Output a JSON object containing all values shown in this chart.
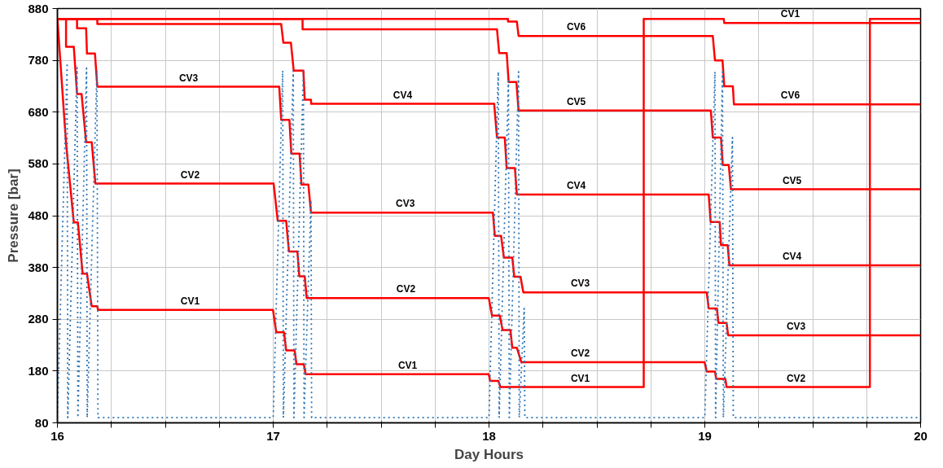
{
  "chart_data": {
    "type": "line",
    "xlabel": "Day Hours",
    "ylabel": "Pressure [bar]",
    "xlim": [
      16,
      20
    ],
    "ylim": [
      80,
      880
    ],
    "xticks": [
      16,
      {
        "value": 16.25,
        "label": null
      },
      {
        "value": 16.5,
        "label": null
      },
      {
        "value": 16.75,
        "label": null
      },
      17,
      {
        "value": 17.25,
        "label": null
      },
      {
        "value": 17.5,
        "label": null
      },
      {
        "value": 17.75,
        "label": null
      },
      18,
      {
        "value": 18.25,
        "label": null
      },
      {
        "value": 18.5,
        "label": null
      },
      {
        "value": 18.75,
        "label": null
      },
      19,
      {
        "value": 19.25,
        "label": null
      },
      {
        "value": 19.5,
        "label": null
      },
      {
        "value": 19.75,
        "label": null
      },
      20
    ],
    "yticks": [
      80,
      180,
      280,
      380,
      480,
      580,
      680,
      780,
      880
    ],
    "grid": true,
    "marker": "none",
    "series": [
      {
        "color": "#ff0000",
        "line_style": "solid",
        "x": [
          16.0,
          16.04,
          16.076,
          16.095,
          16.117,
          16.137,
          16.159,
          16.185,
          16.188,
          16.999,
          17.014,
          17.05,
          17.06,
          17.099,
          17.108,
          17.142,
          17.15,
          17.999,
          18.005,
          18.043,
          18.053,
          18.717,
          18.717,
          19.088,
          19.09,
          20
        ],
        "values": [
          860,
          620,
          467,
          467,
          368,
          368,
          305,
          305,
          298,
          298,
          255,
          255,
          220,
          220,
          193,
          193,
          174,
          174,
          161,
          161,
          149,
          149,
          860,
          860,
          852,
          852
        ]
      },
      {
        "color": "#ff0000",
        "line_style": "solid",
        "x": [
          16.0,
          16.04,
          16.04,
          16.076,
          16.091,
          16.112,
          16.133,
          16.159,
          16.176,
          17.002,
          17.021,
          17.06,
          17.073,
          17.112,
          17.121,
          17.146,
          17.155,
          17.999,
          18.014,
          18.05,
          18.063,
          18.099,
          18.108,
          18.129,
          18.15,
          18.999,
          19.009,
          19.047,
          19.053,
          19.095,
          19.101,
          19.765,
          19.765,
          20
        ],
        "values": [
          860,
          860,
          806,
          806,
          715,
          715,
          622,
          622,
          542,
          542,
          470,
          470,
          411,
          411,
          363,
          363,
          321,
          321,
          287,
          287,
          259,
          259,
          225,
          225,
          197,
          197,
          179,
          179,
          165,
          165,
          149,
          149,
          860,
          860
        ]
      },
      {
        "color": "#ff0000",
        "line_style": "solid",
        "x": [
          16.0,
          16.091,
          16.091,
          16.133,
          16.137,
          16.174,
          16.185,
          17.028,
          17.037,
          17.075,
          17.084,
          17.122,
          17.131,
          17.163,
          17.175,
          18.018,
          18.027,
          18.056,
          18.069,
          18.108,
          18.117,
          18.146,
          18.159,
          19.009,
          19.018,
          19.056,
          19.063,
          19.101,
          19.108,
          20
        ],
        "values": [
          860,
          860,
          842,
          842,
          793,
          793,
          729,
          729,
          665,
          665,
          600,
          600,
          540,
          540,
          486,
          486,
          441,
          441,
          399,
          399,
          362,
          362,
          332,
          332,
          301,
          301,
          273,
          273,
          249,
          249
        ]
      },
      {
        "color": "#ff0000",
        "line_style": "solid",
        "x": [
          16.0,
          16.185,
          16.185,
          17.037,
          17.047,
          17.082,
          17.095,
          17.14,
          17.146,
          17.175,
          17.176,
          18.024,
          18.037,
          18.073,
          18.082,
          18.12,
          18.129,
          19.018,
          19.027,
          19.069,
          19.075,
          19.106,
          19.114,
          20
        ],
        "values": [
          860,
          860,
          850,
          850,
          814,
          814,
          760,
          760,
          704,
          704,
          696,
          696,
          631,
          631,
          572,
          572,
          521,
          521,
          468,
          468,
          423,
          423,
          384,
          384
        ]
      },
      {
        "color": "#ff0000",
        "line_style": "solid",
        "x": [
          16.0,
          17.136,
          17.136,
          18.037,
          18.047,
          18.082,
          18.091,
          18.127,
          18.137,
          19.028,
          19.037,
          19.075,
          19.083,
          19.111,
          19.121,
          20
        ],
        "values": [
          860,
          860,
          840,
          840,
          794,
          794,
          738,
          738,
          683,
          683,
          631,
          631,
          578,
          578,
          531,
          531
        ]
      },
      {
        "color": "#ff0000",
        "line_style": "solid",
        "x": [
          16.0,
          18.088,
          18.088,
          18.129,
          18.137,
          19.037,
          19.047,
          19.082,
          19.09,
          19.13,
          19.135,
          20
        ],
        "values": [
          860,
          860,
          855,
          855,
          827,
          827,
          780,
          780,
          730,
          730,
          695,
          695
        ]
      },
      {
        "color": "#2e75b6",
        "line_style": "dotted",
        "x": [
          16.0,
          16.045,
          16.048,
          16.091,
          16.095,
          16.135,
          16.138,
          16.183,
          16.188,
          17.0,
          17.044,
          17.047,
          17.093,
          17.096,
          17.14,
          17.143,
          17.175,
          17.178,
          18.0,
          18.043,
          18.047,
          18.09,
          18.094,
          18.137,
          18.14,
          18.163,
          18.166,
          19.0,
          19.047,
          19.05,
          19.082,
          19.086,
          19.128,
          19.132,
          20
        ],
        "values": [
          90,
          775,
          90,
          766,
          90,
          765,
          90,
          760,
          90,
          90,
          760,
          90,
          760,
          90,
          760,
          90,
          510,
          90,
          90,
          758,
          90,
          740,
          90,
          758,
          90,
          301,
          90,
          90,
          758,
          90,
          758,
          90,
          631,
          90,
          90
        ]
      }
    ],
    "annotations": [
      {
        "text": "CV3",
        "x": 16.608,
        "y": 729
      },
      {
        "text": "CV2",
        "x": 16.615,
        "y": 542
      },
      {
        "text": "CV1",
        "x": 16.615,
        "y": 298
      },
      {
        "text": "CV4",
        "x": 17.6,
        "y": 696
      },
      {
        "text": "CV3",
        "x": 17.612,
        "y": 486
      },
      {
        "text": "CV2",
        "x": 17.615,
        "y": 321
      },
      {
        "text": "CV1",
        "x": 17.623,
        "y": 174
      },
      {
        "text": "CV6",
        "x": 18.404,
        "y": 827
      },
      {
        "text": "CV5",
        "x": 18.404,
        "y": 683
      },
      {
        "text": "CV4",
        "x": 18.404,
        "y": 521
      },
      {
        "text": "CV3",
        "x": 18.423,
        "y": 332
      },
      {
        "text": "CV2",
        "x": 18.423,
        "y": 197
      },
      {
        "text": "CV1",
        "x": 18.423,
        "y": 149
      },
      {
        "text": "CV1",
        "x": 19.396,
        "y": 852
      },
      {
        "text": "CV6",
        "x": 19.396,
        "y": 695
      },
      {
        "text": "CV5",
        "x": 19.404,
        "y": 531
      },
      {
        "text": "CV4",
        "x": 19.404,
        "y": 384
      },
      {
        "text": "CV3",
        "x": 19.423,
        "y": 249
      },
      {
        "text": "CV2",
        "x": 19.423,
        "y": 149
      }
    ]
  }
}
